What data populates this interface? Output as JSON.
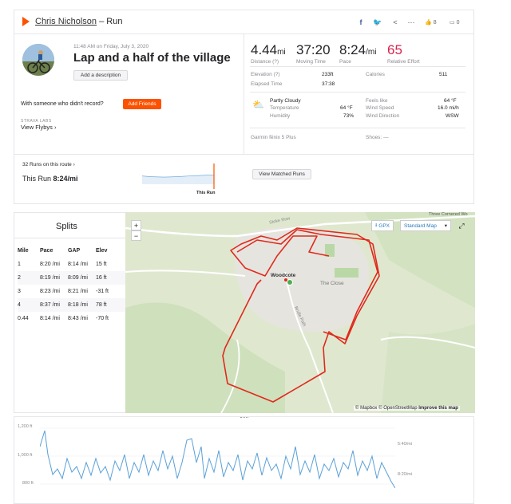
{
  "header": {
    "athlete": "Chris Nicholson",
    "separator": " – ",
    "activity_type": "Run",
    "kudos_count": "8",
    "comment_count": "0"
  },
  "activity": {
    "datetime": "11:48 AM on Friday, July 3, 2020",
    "title": "Lap and a half of the village",
    "add_description": "Add a description",
    "someone_prompt": "With someone who didn't record?",
    "add_friends": "Add Friends",
    "strava_labs": "STRAVA LABS",
    "view_flybys": "View Flybys",
    "flybys_chevron": "›"
  },
  "stats": {
    "distance": {
      "value": "4.44",
      "unit": "mi",
      "label": "Distance (?)"
    },
    "moving_time": {
      "value": "37:20",
      "label": "Moving Time"
    },
    "pace": {
      "value": "8:24",
      "unit": "/mi",
      "label": "Pace"
    },
    "relative_effort": {
      "value": "65",
      "label": "Relative Effort"
    },
    "elevation_label": "Elevation (?)",
    "elevation_value": "233ft",
    "calories_label": "Calories",
    "calories_value": "511",
    "elapsed_label": "Elapsed Time",
    "elapsed_value": "37:38"
  },
  "weather": {
    "condition": "Partly Cloudy",
    "temperature_label": "Temperature",
    "temperature_value": "64 °F",
    "humidity_label": "Humidity",
    "humidity_value": "73%",
    "feels_like_label": "Feels like",
    "feels_like_value": "64 °F",
    "wind_speed_label": "Wind Speed",
    "wind_speed_value": "16.0 mi/h",
    "wind_dir_label": "Wind Direction",
    "wind_dir_value": "WSW"
  },
  "gear": {
    "device": "Garmin fēnix 5 Plus",
    "shoes_label": "Shoes:",
    "shoes_value": "—"
  },
  "route": {
    "runs_on_route": "32 Runs on this route",
    "chevron": "›",
    "this_run_label": "This Run",
    "this_run_pace": "8:24/mi",
    "sparkline_label": "This Run",
    "view_matched": "View Matched Runs"
  },
  "splits": {
    "title": "Splits",
    "headers": [
      "Mile",
      "Pace",
      "GAP",
      "Elev"
    ],
    "rows": [
      {
        "mile": "1",
        "pace": "8:20 /mi",
        "gap": "8:14 /mi",
        "elev": "15 ft"
      },
      {
        "mile": "2",
        "pace": "8:19 /mi",
        "gap": "8:09 /mi",
        "elev": "16 ft"
      },
      {
        "mile": "3",
        "pace": "8:23 /mi",
        "gap": "8:21 /mi",
        "elev": "-31 ft"
      },
      {
        "mile": "4",
        "pace": "8:37 /mi",
        "gap": "8:18 /mi",
        "elev": "78 ft"
      },
      {
        "mile": "0.44",
        "pace": "8:14 /mi",
        "gap": "8:43 /mi",
        "elev": "-70 ft"
      }
    ]
  },
  "map": {
    "gpx": "GPX",
    "style": "Standard Map",
    "zoom_in": "+",
    "zoom_out": "−",
    "label_woodcote": "Woodcote",
    "label_close": "The Close",
    "label_bridle": "Bridle Path",
    "label_stoke": "Stoke Row",
    "label_three": "Three Cornered Wo",
    "attribution": "© Mapbox © OpenStreetMap",
    "improve": "Improve this map"
  },
  "chart_data": {
    "type": "line",
    "y_ticks_left": [
      "1,200 ft",
      "1,000 ft",
      "800 ft"
    ],
    "y_ticks_right": [
      "5:40/mi",
      "8:20/mi"
    ]
  },
  "colors": {
    "brand": "#fc5200",
    "route": "#e0291c",
    "chart_line": "#5aa0d8",
    "map_bg": "#e9ecd8"
  }
}
